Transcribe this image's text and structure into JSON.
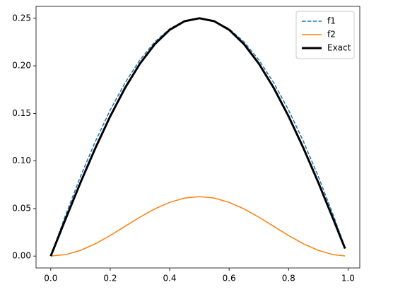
{
  "chart_data": {
    "type": "line",
    "x": [
      0,
      0.05,
      0.1,
      0.15,
      0.2,
      0.25,
      0.3,
      0.35,
      0.4,
      0.45,
      0.5,
      0.55,
      0.6,
      0.65,
      0.7,
      0.75,
      0.8,
      0.85,
      0.9,
      0.95,
      0.99
    ],
    "series": [
      {
        "name": "f1",
        "color": "#1f77b4",
        "dash": "dashed",
        "width": 1.5,
        "values": [
          0,
          0.0433,
          0.0837,
          0.1205,
          0.1535,
          0.1822,
          0.2062,
          0.2252,
          0.2389,
          0.2472,
          0.25,
          0.2472,
          0.2389,
          0.2252,
          0.2062,
          0.1822,
          0.1535,
          0.1205,
          0.0837,
          0.0433,
          0.0089
        ]
      },
      {
        "name": "f2",
        "color": "#ff7f0e",
        "dash": "solid",
        "width": 1.5,
        "values": [
          0,
          0.0015,
          0.006,
          0.0129,
          0.0216,
          0.0313,
          0.0409,
          0.0496,
          0.0565,
          0.061,
          0.0625,
          0.061,
          0.0565,
          0.0496,
          0.0409,
          0.0313,
          0.0216,
          0.0129,
          0.006,
          0.0015,
          0.0001
        ]
      },
      {
        "name": "Exact",
        "color": "#000000",
        "dash": "solid",
        "width": 3,
        "values": [
          0,
          0.0391,
          0.0773,
          0.1135,
          0.1469,
          0.1768,
          0.2023,
          0.2228,
          0.2378,
          0.2469,
          0.25,
          0.2469,
          0.2378,
          0.2228,
          0.2023,
          0.1768,
          0.1469,
          0.1135,
          0.0773,
          0.0391,
          0.0079
        ]
      }
    ],
    "xlim": [
      -0.0495,
      1.0395
    ],
    "ylim": [
      -0.0125,
      0.2625
    ],
    "xticks": [
      {
        "value": 0,
        "label": "0.0"
      },
      0.2,
      0.4,
      0.6,
      0.8,
      {
        "value": 1,
        "label": "1.0"
      }
    ],
    "yticks": [
      {
        "value": 0,
        "label": "0.00"
      },
      0.05,
      {
        "value": 0.1,
        "label": "0.10"
      },
      0.15,
      {
        "value": 0.2,
        "label": "0.20"
      },
      0.25
    ],
    "legend": "upper right"
  }
}
